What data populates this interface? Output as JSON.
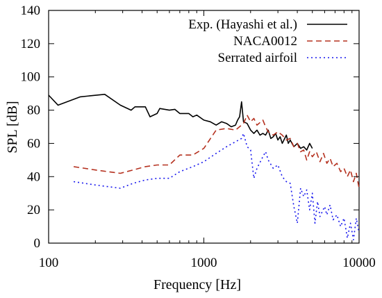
{
  "chart_data": {
    "type": "line",
    "xlabel": "Frequency [Hz]",
    "ylabel": "SPL [dB]",
    "xscale": "log",
    "xlim": [
      100,
      10000
    ],
    "ylim": [
      0,
      140
    ],
    "xticks": [
      100,
      1000,
      10000
    ],
    "xtick_labels": [
      "100",
      "1000",
      "10000"
    ],
    "yticks": [
      0,
      20,
      40,
      60,
      80,
      100,
      120,
      140
    ],
    "ytick_labels": [
      "0",
      "20",
      "40",
      "60",
      "80",
      "100",
      "120",
      "140"
    ],
    "grid": false,
    "legend_position": "top-right",
    "series": [
      {
        "name": "Exp. (Hayashi et al.)",
        "color": "#000000",
        "style": "solid",
        "points": [
          [
            100,
            89
          ],
          [
            115,
            83
          ],
          [
            160,
            88
          ],
          [
            230,
            89.5
          ],
          [
            290,
            83
          ],
          [
            340,
            80
          ],
          [
            360,
            82
          ],
          [
            420,
            82
          ],
          [
            450,
            76
          ],
          [
            500,
            78
          ],
          [
            520,
            81
          ],
          [
            600,
            80
          ],
          [
            650,
            80.5
          ],
          [
            700,
            78
          ],
          [
            800,
            78
          ],
          [
            850,
            76
          ],
          [
            900,
            77
          ],
          [
            1000,
            74
          ],
          [
            1100,
            73
          ],
          [
            1200,
            71
          ],
          [
            1300,
            73
          ],
          [
            1400,
            72
          ],
          [
            1500,
            70
          ],
          [
            1600,
            71
          ],
          [
            1650,
            74
          ],
          [
            1700,
            76
          ],
          [
            1750,
            85
          ],
          [
            1800,
            73
          ],
          [
            1900,
            72
          ],
          [
            2000,
            68
          ],
          [
            2100,
            66
          ],
          [
            2200,
            68
          ],
          [
            2300,
            65
          ],
          [
            2400,
            66
          ],
          [
            2500,
            65
          ],
          [
            2600,
            68
          ],
          [
            2700,
            63
          ],
          [
            2800,
            64
          ],
          [
            2900,
            66
          ],
          [
            3000,
            62
          ],
          [
            3100,
            64
          ],
          [
            3200,
            60
          ],
          [
            3400,
            65
          ],
          [
            3500,
            60
          ],
          [
            3600,
            62
          ],
          [
            3800,
            58
          ],
          [
            4000,
            60
          ],
          [
            4200,
            57
          ],
          [
            4400,
            58
          ],
          [
            4600,
            56
          ],
          [
            4800,
            60
          ],
          [
            5000,
            57
          ]
        ]
      },
      {
        "name": "NACA0012",
        "color": "#b5311f",
        "style": "dashed",
        "points": [
          [
            145,
            46
          ],
          [
            200,
            44
          ],
          [
            290,
            42
          ],
          [
            350,
            44
          ],
          [
            420,
            46
          ],
          [
            500,
            47
          ],
          [
            600,
            47
          ],
          [
            700,
            53
          ],
          [
            850,
            53
          ],
          [
            1000,
            57
          ],
          [
            1200,
            68
          ],
          [
            1400,
            69
          ],
          [
            1600,
            68
          ],
          [
            1800,
            72
          ],
          [
            1900,
            77
          ],
          [
            2000,
            73
          ],
          [
            2100,
            75
          ],
          [
            2200,
            71
          ],
          [
            2400,
            74
          ],
          [
            2500,
            70
          ],
          [
            2600,
            67
          ],
          [
            2800,
            65
          ],
          [
            3000,
            67
          ],
          [
            3200,
            65
          ],
          [
            3400,
            62
          ],
          [
            3600,
            63
          ],
          [
            3800,
            58
          ],
          [
            4000,
            60
          ],
          [
            4200,
            55
          ],
          [
            4400,
            56
          ],
          [
            4600,
            50
          ],
          [
            4800,
            55
          ],
          [
            5000,
            52
          ],
          [
            5300,
            55
          ],
          [
            5600,
            49
          ],
          [
            5900,
            54
          ],
          [
            6200,
            48
          ],
          [
            6500,
            51
          ],
          [
            6800,
            46
          ],
          [
            7200,
            48
          ],
          [
            7600,
            43
          ],
          [
            8000,
            45
          ],
          [
            8400,
            40
          ],
          [
            8800,
            44
          ],
          [
            9200,
            37
          ],
          [
            9600,
            42
          ],
          [
            10000,
            33
          ]
        ]
      },
      {
        "name": "Serrated airfoil",
        "color": "#1515ee",
        "style": "dotted",
        "points": [
          [
            145,
            37
          ],
          [
            200,
            35
          ],
          [
            290,
            33
          ],
          [
            350,
            36
          ],
          [
            420,
            38
          ],
          [
            500,
            39
          ],
          [
            600,
            39
          ],
          [
            700,
            43
          ],
          [
            850,
            46
          ],
          [
            1000,
            49
          ],
          [
            1200,
            54
          ],
          [
            1400,
            58
          ],
          [
            1600,
            61
          ],
          [
            1750,
            63
          ],
          [
            1800,
            66
          ],
          [
            1900,
            58
          ],
          [
            2000,
            56
          ],
          [
            2100,
            39
          ],
          [
            2200,
            45
          ],
          [
            2400,
            52
          ],
          [
            2500,
            55
          ],
          [
            2600,
            50
          ],
          [
            2800,
            45
          ],
          [
            3000,
            47
          ],
          [
            3200,
            40
          ],
          [
            3400,
            37
          ],
          [
            3600,
            36
          ],
          [
            3800,
            22
          ],
          [
            4000,
            12
          ],
          [
            4200,
            33
          ],
          [
            4400,
            28
          ],
          [
            4600,
            32
          ],
          [
            4800,
            20
          ],
          [
            5000,
            30
          ],
          [
            5200,
            12
          ],
          [
            5400,
            25
          ],
          [
            5600,
            16
          ],
          [
            6000,
            22
          ],
          [
            6200,
            17
          ],
          [
            6500,
            23
          ],
          [
            6800,
            14
          ],
          [
            7200,
            17
          ],
          [
            7600,
            10
          ],
          [
            8000,
            15
          ],
          [
            8400,
            3
          ],
          [
            8800,
            12
          ],
          [
            9200,
            2
          ],
          [
            9600,
            15
          ],
          [
            10000,
            6
          ]
        ]
      }
    ]
  }
}
